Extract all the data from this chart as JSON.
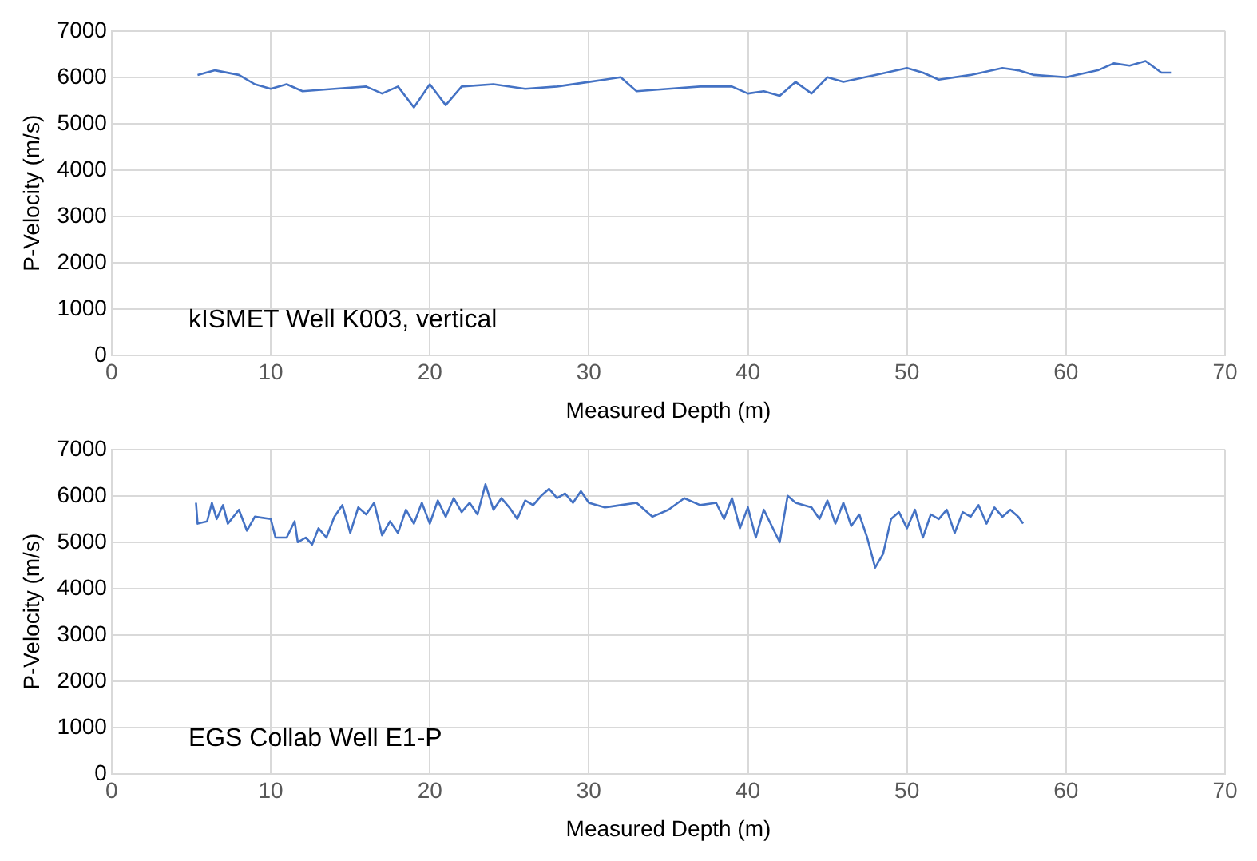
{
  "chart_data": [
    {
      "type": "line",
      "xlabel": "Measured Depth (m)",
      "ylabel": "P-Velocity (m/s)",
      "annotations": [
        "kISMET Well K003, vertical"
      ],
      "color": "#4472c4",
      "grid": true,
      "marker": "none",
      "xlim": [
        0,
        70
      ],
      "xticks": [
        0,
        10,
        20,
        30,
        40,
        50,
        60,
        70
      ],
      "ylim": [
        0,
        7000
      ],
      "yticks": [
        0,
        1000,
        2000,
        3000,
        4000,
        5000,
        6000,
        7000
      ],
      "x": [
        5.4,
        6.5,
        8,
        9,
        10,
        11,
        12,
        14,
        16,
        17,
        18,
        19,
        20,
        21,
        22,
        24,
        26,
        28,
        30,
        32,
        33,
        35,
        37,
        39,
        40,
        41,
        42,
        43,
        44,
        45,
        46,
        48,
        50,
        51,
        52,
        54,
        56,
        57,
        58,
        60,
        62,
        63,
        64,
        65,
        66,
        66.6
      ],
      "values": [
        6050,
        6150,
        6050,
        5850,
        5750,
        5850,
        5700,
        5750,
        5800,
        5650,
        5800,
        5350,
        5850,
        5400,
        5800,
        5850,
        5750,
        5800,
        5900,
        6000,
        5700,
        5750,
        5800,
        5800,
        5650,
        5700,
        5600,
        5900,
        5650,
        6000,
        5900,
        6050,
        6200,
        6100,
        5950,
        6050,
        6200,
        6150,
        6050,
        6000,
        6150,
        6300,
        6250,
        6350,
        6100,
        6100
      ]
    },
    {
      "type": "line",
      "xlabel": "Measured Depth (m)",
      "ylabel": "P-Velocity (m/s)",
      "annotations": [
        "EGS Collab Well E1-P"
      ],
      "color": "#4472c4",
      "grid": true,
      "marker": "none",
      "xlim": [
        0,
        70
      ],
      "xticks": [
        0,
        10,
        20,
        30,
        40,
        50,
        60,
        70
      ],
      "ylim": [
        0,
        7000
      ],
      "yticks": [
        0,
        1000,
        2000,
        3000,
        4000,
        5000,
        6000,
        7000
      ],
      "x": [
        5.3,
        5.4,
        6,
        6.3,
        6.6,
        7,
        7.3,
        8,
        8.5,
        9,
        10,
        10.3,
        11,
        11.5,
        11.7,
        12.2,
        12.6,
        13,
        13.5,
        14,
        14.5,
        15,
        15.5,
        16,
        16.5,
        17,
        17.5,
        18,
        18.5,
        19,
        19.5,
        20,
        20.5,
        21,
        21.5,
        22,
        22.5,
        23,
        23.5,
        24,
        24.5,
        25,
        25.5,
        26,
        26.5,
        27,
        27.5,
        28,
        28.5,
        29,
        29.5,
        30,
        31,
        32,
        33,
        34,
        35,
        36,
        37,
        38,
        38.5,
        39,
        39.5,
        40,
        40.5,
        41,
        42,
        42.5,
        43,
        44,
        44.5,
        45,
        45.5,
        46,
        46.5,
        47,
        47.5,
        48,
        48.5,
        49,
        49.5,
        50,
        50.5,
        51,
        51.5,
        52,
        52.5,
        53,
        53.5,
        54,
        54.5,
        55,
        55.5,
        56,
        56.5,
        57,
        57.3
      ],
      "values": [
        5850,
        5400,
        5450,
        5850,
        5500,
        5800,
        5400,
        5700,
        5250,
        5550,
        5500,
        5100,
        5100,
        5450,
        5000,
        5100,
        4950,
        5300,
        5100,
        5550,
        5800,
        5200,
        5750,
        5600,
        5850,
        5150,
        5450,
        5200,
        5700,
        5400,
        5850,
        5400,
        5900,
        5550,
        5950,
        5650,
        5850,
        5600,
        6250,
        5700,
        5950,
        5750,
        5500,
        5900,
        5800,
        6000,
        6150,
        5950,
        6050,
        5850,
        6100,
        5850,
        5750,
        5800,
        5850,
        5550,
        5700,
        5950,
        5800,
        5850,
        5500,
        5950,
        5300,
        5750,
        5100,
        5700,
        5000,
        6000,
        5850,
        5750,
        5500,
        5900,
        5400,
        5850,
        5350,
        5600,
        5100,
        4450,
        4750,
        5500,
        5650,
        5300,
        5700,
        5100,
        5600,
        5500,
        5700,
        5200,
        5650,
        5550,
        5800,
        5400,
        5750,
        5550,
        5700,
        5550,
        5400
      ]
    }
  ]
}
